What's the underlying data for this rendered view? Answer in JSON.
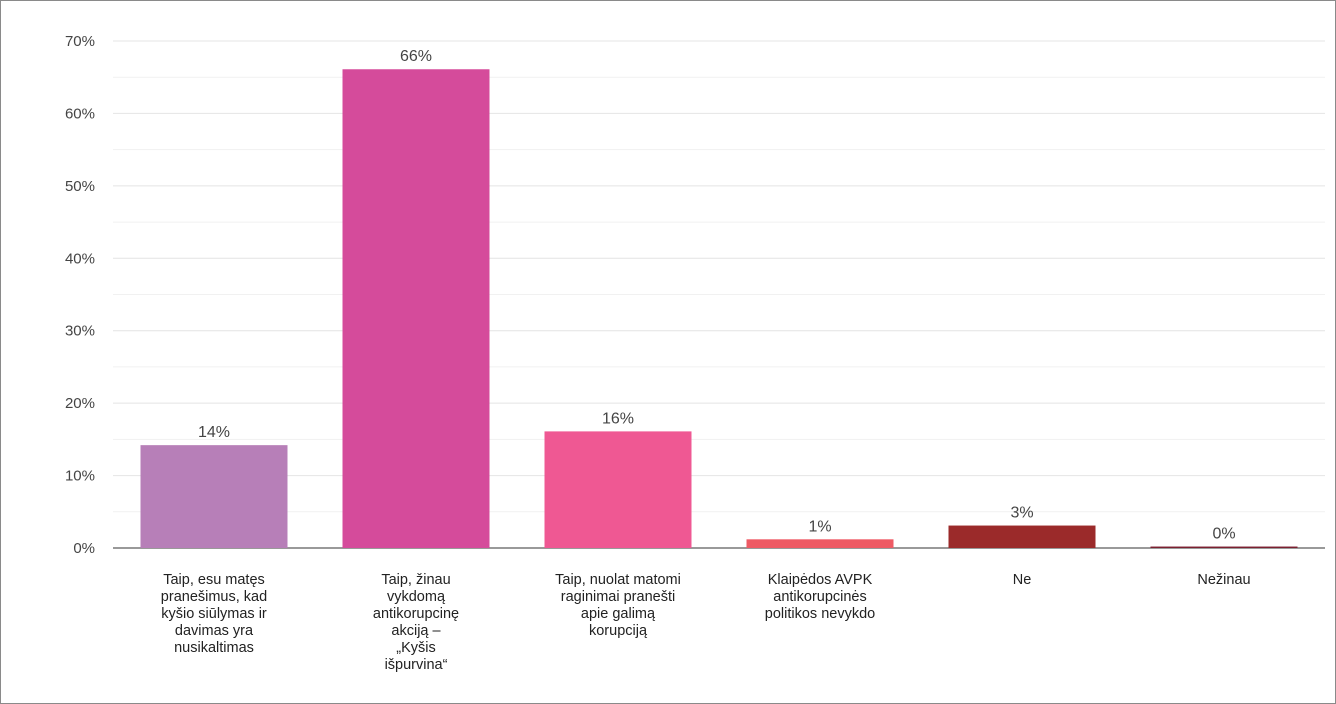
{
  "chart_data": {
    "type": "bar",
    "title": "",
    "xlabel": "",
    "ylabel": "",
    "ylim": [
      0,
      70
    ],
    "yticks": [
      "0%",
      "10%",
      "20%",
      "30%",
      "40%",
      "50%",
      "60%",
      "70%"
    ],
    "grid": true,
    "legend": "none",
    "categories": [
      [
        "Taip, esu matęs",
        "pranešimus, kad",
        "kyšio siūlymas ir",
        "davimas yra",
        "nusikaltimas"
      ],
      [
        "Taip, žinau",
        "vykdomą",
        "antikorupcinę",
        "akciją –",
        "„Kyšis",
        "išpurvina“"
      ],
      [
        "Taip, nuolat matomi",
        "raginimai pranešti",
        "apie galimą",
        "korupciją"
      ],
      [
        "Klaipėdos AVPK",
        "antikorupcinės",
        "politikos nevykdo"
      ],
      [
        "Ne"
      ],
      [
        "Nežinau"
      ]
    ],
    "values": [
      14.2,
      66.1,
      16.1,
      1.2,
      3.1,
      0.2
    ],
    "data_labels": [
      "14%",
      "66%",
      "16%",
      "1%",
      "3%",
      "0%"
    ],
    "colors": [
      "#b77fb8",
      "#d54b9b",
      "#ef5893",
      "#ee5a64",
      "#9b2a2a",
      "#7b2030"
    ]
  }
}
